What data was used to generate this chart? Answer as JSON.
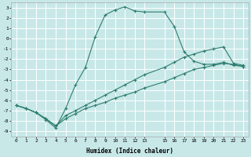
{
  "xlabel": "Humidex (Indice chaleur)",
  "background_color": "#c8e8e8",
  "grid_color": "#ffffff",
  "line_color": "#2e7d6e",
  "xlim": [
    -0.5,
    23.5
  ],
  "ylim": [
    -9.5,
    3.5
  ],
  "xtick_labels": [
    "0",
    "1",
    "2",
    "3",
    "4",
    "5",
    "6",
    "7",
    "8",
    "9",
    "10",
    "11",
    "12",
    "13",
    "15",
    "16",
    "17",
    "18",
    "19",
    "20",
    "21",
    "22",
    "23"
  ],
  "xtick_vals": [
    0,
    1,
    2,
    3,
    4,
    5,
    6,
    7,
    8,
    9,
    10,
    11,
    12,
    13,
    15,
    16,
    17,
    18,
    19,
    20,
    21,
    22,
    23
  ],
  "yticks": [
    3,
    2,
    1,
    0,
    -1,
    -2,
    -3,
    -4,
    -5,
    -6,
    -7,
    -8,
    -9
  ],
  "series": [
    {
      "x": [
        0,
        1,
        2,
        3,
        4,
        5,
        6,
        7,
        8,
        9,
        10,
        11,
        12,
        13,
        15,
        16,
        17,
        18,
        19,
        20,
        21,
        22,
        23
      ],
      "y": [
        -6.5,
        -6.8,
        -7.2,
        -7.9,
        -8.7,
        -6.8,
        -4.5,
        -2.8,
        0.2,
        2.3,
        2.8,
        3.1,
        2.7,
        2.6,
        2.6,
        1.2,
        -1.3,
        -2.2,
        -2.5,
        -2.5,
        -2.3,
        -2.6,
        -2.7
      ]
    },
    {
      "x": [
        0,
        1,
        2,
        3,
        4,
        5,
        6,
        7,
        8,
        9,
        10,
        11,
        12,
        13,
        15,
        16,
        17,
        18,
        19,
        20,
        21,
        22,
        23
      ],
      "y": [
        -6.5,
        -6.8,
        -7.2,
        -7.8,
        -8.5,
        -7.8,
        -7.3,
        -6.8,
        -6.5,
        -6.2,
        -5.8,
        -5.5,
        -5.2,
        -4.8,
        -4.2,
        -3.8,
        -3.4,
        -3.0,
        -2.8,
        -2.6,
        -2.4,
        -2.5,
        -2.7
      ]
    },
    {
      "x": [
        0,
        1,
        2,
        3,
        4,
        5,
        6,
        7,
        8,
        9,
        10,
        11,
        12,
        13,
        15,
        16,
        17,
        18,
        19,
        20,
        21,
        22,
        23
      ],
      "y": [
        -6.5,
        -6.8,
        -7.2,
        -7.8,
        -8.5,
        -7.5,
        -7.0,
        -6.5,
        -6.0,
        -5.5,
        -5.0,
        -4.5,
        -4.0,
        -3.5,
        -2.8,
        -2.3,
        -1.8,
        -1.5,
        -1.2,
        -1.0,
        -0.8,
        -2.4,
        -2.6
      ]
    }
  ]
}
